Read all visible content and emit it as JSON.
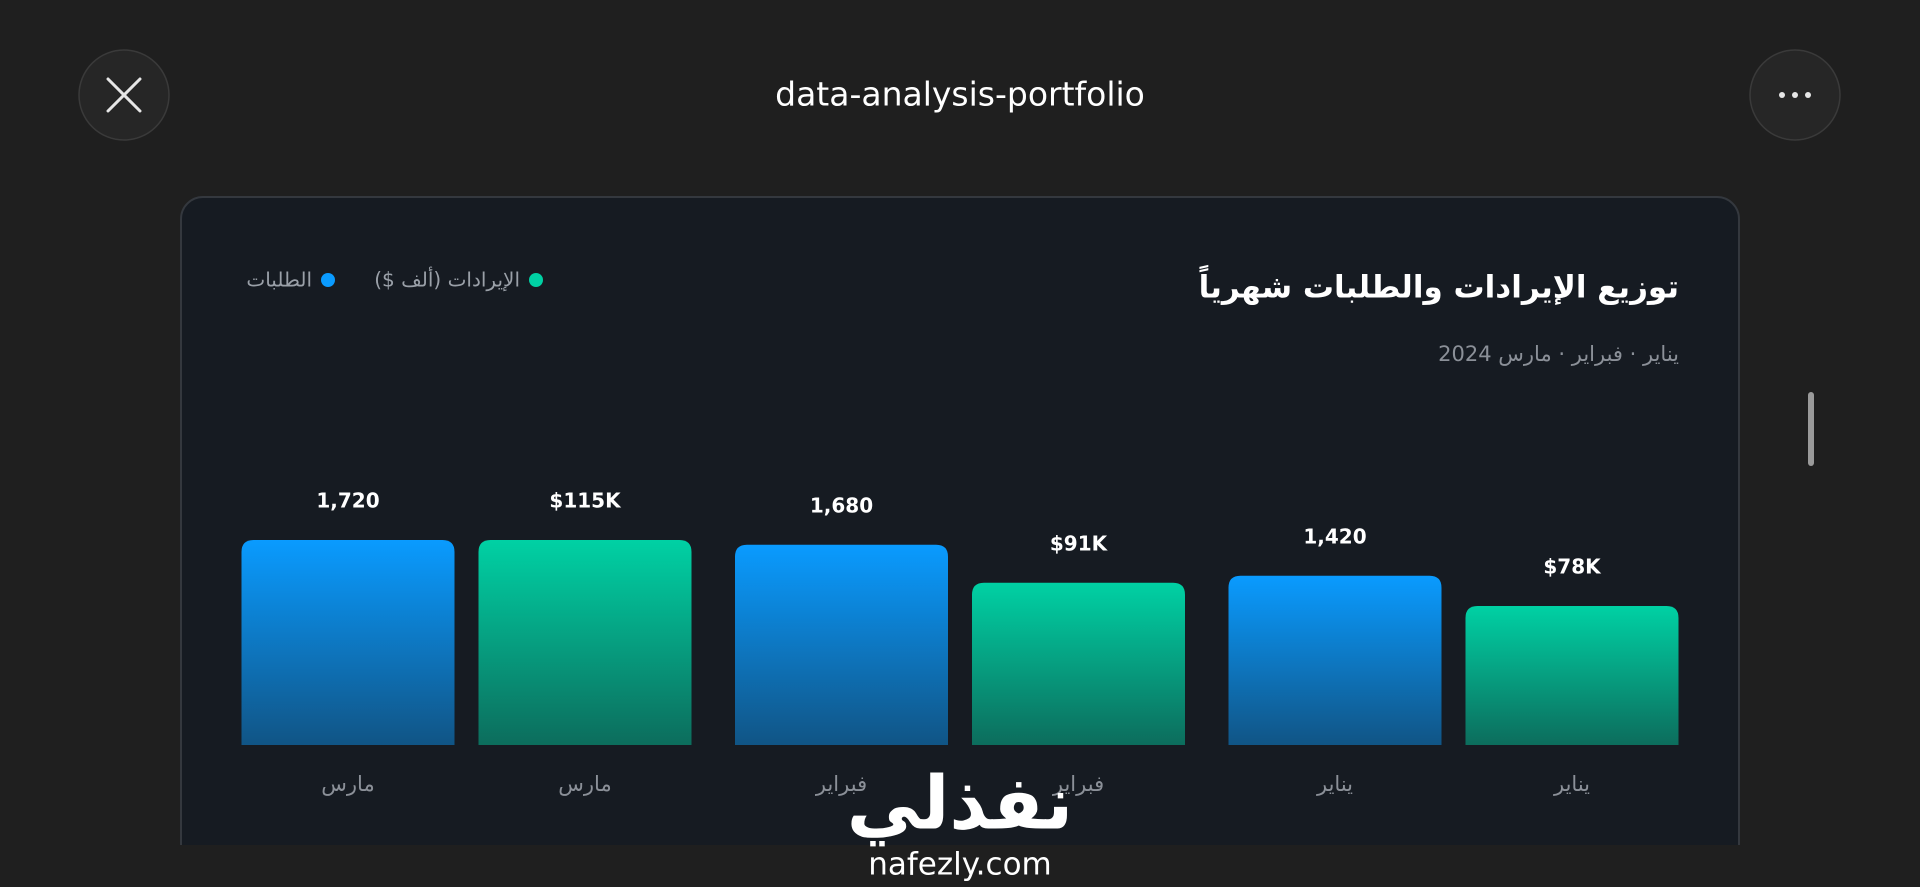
{
  "header": {
    "title": "data-analysis-portfolio"
  },
  "chart_data": {
    "type": "bar",
    "title": "توزيع الإيرادات والطلبات شهرياً",
    "subtitle": "يناير · فبراير · مارس 2024",
    "categories": [
      "يناير",
      "فبراير",
      "مارس"
    ],
    "series": [
      {
        "name": "الإيرادات (ألف $)",
        "color": "#00d1a4",
        "values": [
          78,
          91,
          115
        ],
        "value_labels": [
          "$78K",
          "$91K",
          "$115K"
        ]
      },
      {
        "name": "الطلبات",
        "color": "#0a9bff",
        "values": [
          1420,
          1680,
          1720
        ],
        "value_labels": [
          "1,420",
          "1,680",
          "1,720"
        ]
      }
    ]
  },
  "watermark": {
    "logo": "نفذلي",
    "site": "nafezly.com"
  }
}
